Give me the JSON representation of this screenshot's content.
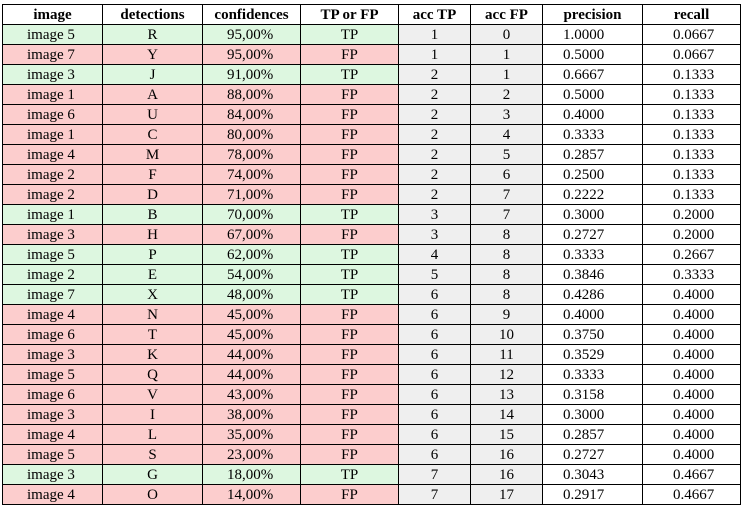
{
  "colors": {
    "tp_row": "#ddf7e0",
    "fp_row": "#fccdcd",
    "acc_cells": "#efefef"
  },
  "headers": [
    "image",
    "detections",
    "confidences",
    "TP or FP",
    "acc TP",
    "acc FP",
    "precision",
    "recall"
  ],
  "rows": [
    [
      "image 5",
      "R",
      "95,00%",
      "TP",
      "1",
      "0",
      "1.0000",
      "0.0667"
    ],
    [
      "image 7",
      "Y",
      "95,00%",
      "FP",
      "1",
      "1",
      "0.5000",
      "0.0667"
    ],
    [
      "image 3",
      "J",
      "91,00%",
      "TP",
      "2",
      "1",
      "0.6667",
      "0.1333"
    ],
    [
      "image 1",
      "A",
      "88,00%",
      "FP",
      "2",
      "2",
      "0.5000",
      "0.1333"
    ],
    [
      "image 6",
      "U",
      "84,00%",
      "FP",
      "2",
      "3",
      "0.4000",
      "0.1333"
    ],
    [
      "image 1",
      "C",
      "80,00%",
      "FP",
      "2",
      "4",
      "0.3333",
      "0.1333"
    ],
    [
      "image 4",
      "M",
      "78,00%",
      "FP",
      "2",
      "5",
      "0.2857",
      "0.1333"
    ],
    [
      "image 2",
      "F",
      "74,00%",
      "FP",
      "2",
      "6",
      "0.2500",
      "0.1333"
    ],
    [
      "image 2",
      "D",
      "71,00%",
      "FP",
      "2",
      "7",
      "0.2222",
      "0.1333"
    ],
    [
      "image 1",
      "B",
      "70,00%",
      "TP",
      "3",
      "7",
      "0.3000",
      "0.2000"
    ],
    [
      "image 3",
      "H",
      "67,00%",
      "FP",
      "3",
      "8",
      "0.2727",
      "0.2000"
    ],
    [
      "image 5",
      "P",
      "62,00%",
      "TP",
      "4",
      "8",
      "0.3333",
      "0.2667"
    ],
    [
      "image 2",
      "E",
      "54,00%",
      "TP",
      "5",
      "8",
      "0.3846",
      "0.3333"
    ],
    [
      "image 7",
      "X",
      "48,00%",
      "TP",
      "6",
      "8",
      "0.4286",
      "0.4000"
    ],
    [
      "image 4",
      "N",
      "45,00%",
      "FP",
      "6",
      "9",
      "0.4000",
      "0.4000"
    ],
    [
      "image 6",
      "T",
      "45,00%",
      "FP",
      "6",
      "10",
      "0.3750",
      "0.4000"
    ],
    [
      "image 3",
      "K",
      "44,00%",
      "FP",
      "6",
      "11",
      "0.3529",
      "0.4000"
    ],
    [
      "image 5",
      "Q",
      "44,00%",
      "FP",
      "6",
      "12",
      "0.3333",
      "0.4000"
    ],
    [
      "image 6",
      "V",
      "43,00%",
      "FP",
      "6",
      "13",
      "0.3158",
      "0.4000"
    ],
    [
      "image 3",
      "I",
      "38,00%",
      "FP",
      "6",
      "14",
      "0.3000",
      "0.4000"
    ],
    [
      "image 4",
      "L",
      "35,00%",
      "FP",
      "6",
      "15",
      "0.2857",
      "0.4000"
    ],
    [
      "image 5",
      "S",
      "23,00%",
      "FP",
      "6",
      "16",
      "0.2727",
      "0.4000"
    ],
    [
      "image 3",
      "G",
      "18,00%",
      "TP",
      "7",
      "16",
      "0.3043",
      "0.4667"
    ],
    [
      "image 4",
      "O",
      "14,00%",
      "FP",
      "7",
      "17",
      "0.2917",
      "0.4667"
    ]
  ]
}
